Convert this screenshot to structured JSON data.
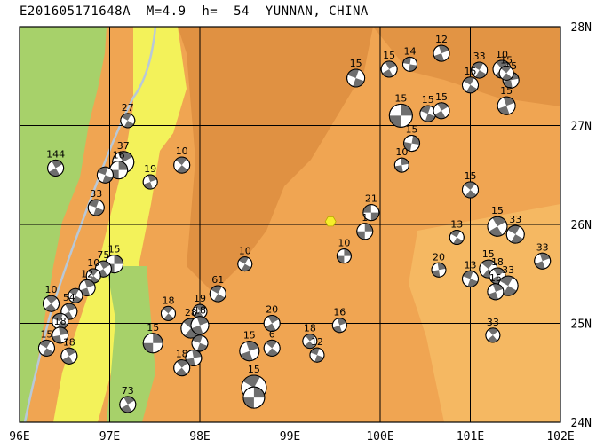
{
  "title": "E201605171648A  M=4.9  h=  54  YUNNAN, CHINA",
  "map": {
    "lon_range": [
      96,
      102
    ],
    "lat_range": [
      24,
      28
    ],
    "x_ticks": [
      "96E",
      "97E",
      "98E",
      "99E",
      "100E",
      "101E",
      "102E"
    ],
    "y_ticks": [
      "24N",
      "25N",
      "26N",
      "27N",
      "28N"
    ],
    "colors": {
      "terrain_orange": "#f0a552",
      "terrain_light_orange": "#f7c06a",
      "terrain_dark_orange": "#d9893c",
      "lowland_green": "#a7d16a",
      "lowland_yellow": "#f3f25a",
      "river": "#b8c8d8",
      "grid": "#000000",
      "beachball_dark": "#6e6e6e",
      "event_marker": "#f6ee2a"
    },
    "event": {
      "lon": 99.45,
      "lat": 26.03
    },
    "mechanisms": [
      {
        "lon": 99.73,
        "lat": 27.48,
        "depth": "15",
        "r": 10,
        "rot": 20
      },
      {
        "lon": 100.1,
        "lat": 27.57,
        "depth": "15",
        "r": 9,
        "rot": 60
      },
      {
        "lon": 100.33,
        "lat": 27.62,
        "depth": "14",
        "r": 8,
        "rot": 10
      },
      {
        "lon": 100.68,
        "lat": 27.73,
        "depth": "12",
        "r": 9,
        "rot": 70
      },
      {
        "lon": 101.1,
        "lat": 27.56,
        "depth": "33",
        "r": 9,
        "rot": 30
      },
      {
        "lon": 101.35,
        "lat": 27.57,
        "depth": "10",
        "r": 10,
        "rot": 50
      },
      {
        "lon": 101.45,
        "lat": 27.46,
        "depth": "15",
        "r": 9,
        "rot": 80
      },
      {
        "lon": 101.4,
        "lat": 27.53,
        "depth": "15",
        "r": 8,
        "rot": 40
      },
      {
        "lon": 100.23,
        "lat": 27.1,
        "depth": "15",
        "r": 13,
        "rot": 90
      },
      {
        "lon": 100.53,
        "lat": 27.12,
        "depth": "15",
        "r": 9,
        "rot": 20
      },
      {
        "lon": 100.68,
        "lat": 27.15,
        "depth": "15",
        "r": 9,
        "rot": 60
      },
      {
        "lon": 101.0,
        "lat": 27.41,
        "depth": "15",
        "r": 9,
        "rot": 30
      },
      {
        "lon": 101.4,
        "lat": 27.2,
        "depth": "15",
        "r": 10,
        "rot": 70
      },
      {
        "lon": 100.35,
        "lat": 26.82,
        "depth": "15",
        "r": 9,
        "rot": 100
      },
      {
        "lon": 100.24,
        "lat": 26.6,
        "depth": "10",
        "r": 8,
        "rot": 80
      },
      {
        "lon": 101.0,
        "lat": 26.35,
        "depth": "15",
        "r": 9,
        "rot": 40
      },
      {
        "lon": 99.9,
        "lat": 26.12,
        "depth": "21",
        "r": 9,
        "rot": 0
      },
      {
        "lon": 99.83,
        "lat": 25.93,
        "depth": "1",
        "r": 9,
        "rot": 90
      },
      {
        "lon": 99.6,
        "lat": 25.68,
        "depth": "10",
        "r": 8,
        "rot": 90
      },
      {
        "lon": 100.85,
        "lat": 25.87,
        "depth": "13",
        "r": 8,
        "rot": 30
      },
      {
        "lon": 101.3,
        "lat": 25.98,
        "depth": "15",
        "r": 11,
        "rot": 60
      },
      {
        "lon": 101.5,
        "lat": 25.9,
        "depth": "33",
        "r": 10,
        "rot": 30
      },
      {
        "lon": 101.8,
        "lat": 25.63,
        "depth": "33",
        "r": 9,
        "rot": 70
      },
      {
        "lon": 100.65,
        "lat": 25.54,
        "depth": "20",
        "r": 8,
        "rot": 80
      },
      {
        "lon": 101.0,
        "lat": 25.45,
        "depth": "13",
        "r": 9,
        "rot": 20
      },
      {
        "lon": 101.2,
        "lat": 25.55,
        "depth": "15",
        "r": 10,
        "rot": 40
      },
      {
        "lon": 101.3,
        "lat": 25.48,
        "depth": "18",
        "r": 9,
        "rot": 60
      },
      {
        "lon": 101.42,
        "lat": 25.38,
        "depth": "33",
        "r": 11,
        "rot": 30
      },
      {
        "lon": 101.28,
        "lat": 25.32,
        "depth": "15",
        "r": 9,
        "rot": 70
      },
      {
        "lon": 101.25,
        "lat": 24.88,
        "depth": "33",
        "r": 8,
        "rot": 50
      },
      {
        "lon": 96.4,
        "lat": 26.57,
        "depth": "144",
        "r": 9,
        "rot": 60
      },
      {
        "lon": 97.2,
        "lat": 27.05,
        "depth": "27",
        "r": 8,
        "rot": 30
      },
      {
        "lon": 97.15,
        "lat": 26.63,
        "depth": "37",
        "r": 12,
        "rot": 60
      },
      {
        "lon": 97.1,
        "lat": 26.55,
        "depth": "16",
        "r": 10,
        "rot": 90
      },
      {
        "lon": 96.95,
        "lat": 26.5,
        "depth": "",
        "r": 9,
        "rot": 20
      },
      {
        "lon": 97.45,
        "lat": 26.43,
        "depth": "19",
        "r": 8,
        "rot": 70
      },
      {
        "lon": 97.8,
        "lat": 26.6,
        "depth": "10",
        "r": 9,
        "rot": 40
      },
      {
        "lon": 96.85,
        "lat": 26.17,
        "depth": "33",
        "r": 9,
        "rot": 20
      },
      {
        "lon": 97.05,
        "lat": 25.6,
        "depth": "15",
        "r": 10,
        "rot": 90
      },
      {
        "lon": 96.93,
        "lat": 25.55,
        "depth": "75",
        "r": 9,
        "rot": 60
      },
      {
        "lon": 96.82,
        "lat": 25.48,
        "depth": "10",
        "r": 8,
        "rot": 40
      },
      {
        "lon": 96.75,
        "lat": 25.36,
        "depth": "12",
        "r": 9,
        "rot": 70
      },
      {
        "lon": 96.62,
        "lat": 25.28,
        "depth": "",
        "r": 8,
        "rot": 30
      },
      {
        "lon": 96.35,
        "lat": 25.2,
        "depth": "10",
        "r": 9,
        "rot": 50
      },
      {
        "lon": 96.55,
        "lat": 25.12,
        "depth": "54",
        "r": 9,
        "rot": 60
      },
      {
        "lon": 96.45,
        "lat": 25.02,
        "depth": "",
        "r": 9,
        "rot": 20
      },
      {
        "lon": 96.45,
        "lat": 24.88,
        "depth": "18",
        "r": 9,
        "rot": 80
      },
      {
        "lon": 96.3,
        "lat": 24.75,
        "depth": "15",
        "r": 9,
        "rot": 30
      },
      {
        "lon": 96.55,
        "lat": 24.67,
        "depth": "18",
        "r": 9,
        "rot": 60
      },
      {
        "lon": 97.48,
        "lat": 24.8,
        "depth": "15",
        "r": 11,
        "rot": 90
      },
      {
        "lon": 97.2,
        "lat": 24.18,
        "depth": "73",
        "r": 9,
        "rot": 60
      },
      {
        "lon": 97.65,
        "lat": 25.1,
        "depth": "18",
        "r": 8,
        "rot": 40
      },
      {
        "lon": 98.2,
        "lat": 25.3,
        "depth": "61",
        "r": 9,
        "rot": 30
      },
      {
        "lon": 98.0,
        "lat": 25.12,
        "depth": "19",
        "r": 8,
        "rot": 60
      },
      {
        "lon": 97.9,
        "lat": 24.95,
        "depth": "28",
        "r": 11,
        "rot": 40
      },
      {
        "lon": 98.0,
        "lat": 24.98,
        "depth": "18",
        "r": 10,
        "rot": 70
      },
      {
        "lon": 98.0,
        "lat": 24.8,
        "depth": "",
        "r": 9,
        "rot": 20
      },
      {
        "lon": 97.93,
        "lat": 24.65,
        "depth": "",
        "r": 9,
        "rot": 80
      },
      {
        "lon": 97.8,
        "lat": 24.55,
        "depth": "18",
        "r": 9,
        "rot": 50
      },
      {
        "lon": 98.5,
        "lat": 25.6,
        "depth": "10",
        "r": 8,
        "rot": 30
      },
      {
        "lon": 98.8,
        "lat": 25.0,
        "depth": "20",
        "r": 9,
        "rot": 60
      },
      {
        "lon": 98.8,
        "lat": 24.75,
        "depth": "6",
        "r": 9,
        "rot": 40
      },
      {
        "lon": 98.55,
        "lat": 24.72,
        "depth": "15",
        "r": 11,
        "rot": 70
      },
      {
        "lon": 98.6,
        "lat": 24.35,
        "depth": "15",
        "r": 14,
        "rot": 30
      },
      {
        "lon": 98.6,
        "lat": 24.25,
        "depth": "",
        "r": 12,
        "rot": 90
      },
      {
        "lon": 99.22,
        "lat": 24.82,
        "depth": "18",
        "r": 8,
        "rot": 50
      },
      {
        "lon": 99.3,
        "lat": 24.68,
        "depth": "12",
        "r": 8,
        "rot": 20
      },
      {
        "lon": 99.55,
        "lat": 24.98,
        "depth": "16",
        "r": 8,
        "rot": 70
      }
    ]
  }
}
